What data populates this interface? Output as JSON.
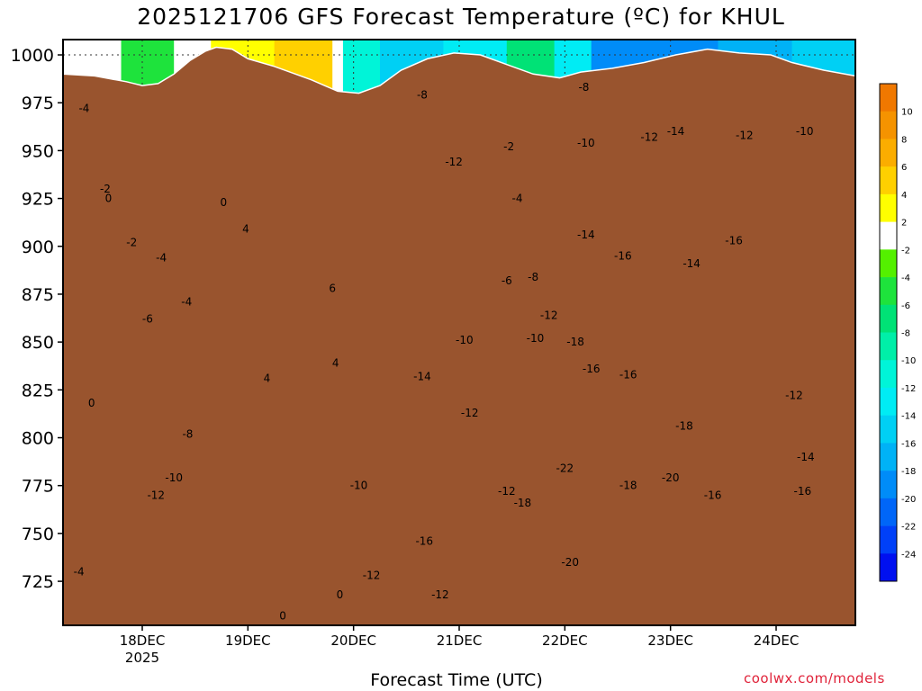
{
  "chart_data": {
    "type": "heatmap",
    "title": "2025121706 GFS Forecast Temperature (ºC) for KHUL",
    "xlabel": "Forecast Time (UTC)",
    "ylabel": "",
    "x_ticks": [
      {
        "label": "18DEC",
        "sublabel": "2025",
        "t": 0.75
      },
      {
        "label": "19DEC",
        "t": 1.75
      },
      {
        "label": "20DEC",
        "t": 2.75
      },
      {
        "label": "21DEC",
        "t": 3.75
      },
      {
        "label": "22DEC",
        "t": 4.75
      },
      {
        "label": "23DEC",
        "t": 5.75
      },
      {
        "label": "24DEC",
        "t": 6.75
      }
    ],
    "xlim": [
      0,
      7.5
    ],
    "y_ticks": [
      725,
      750,
      775,
      800,
      825,
      850,
      875,
      900,
      925,
      950,
      975,
      1000
    ],
    "ylim": [
      1008,
      702
    ],
    "colorbar": {
      "ticks": [
        "10",
        "8",
        "6",
        "4",
        "2",
        "-2",
        "-4",
        "-6",
        "-8",
        "-10",
        "-12",
        "-14",
        "-16",
        "-18",
        "-20",
        "-22",
        "-24"
      ],
      "bands": [
        {
          "from": 12,
          "to": 10,
          "color": "#f07800"
        },
        {
          "from": 10,
          "to": 8,
          "color": "#f59300"
        },
        {
          "from": 8,
          "to": 6,
          "color": "#fbad00"
        },
        {
          "from": 6,
          "to": 4,
          "color": "#ffd000"
        },
        {
          "from": 4,
          "to": 2,
          "color": "#ffff00"
        },
        {
          "from": 2,
          "to": -2,
          "color": "#ffffff"
        },
        {
          "from": -2,
          "to": -4,
          "color": "#54f000"
        },
        {
          "from": -4,
          "to": -6,
          "color": "#1ee33c"
        },
        {
          "from": -6,
          "to": -8,
          "color": "#00e276"
        },
        {
          "from": -8,
          "to": -10,
          "color": "#00efa8"
        },
        {
          "from": -10,
          "to": -12,
          "color": "#00f4d8"
        },
        {
          "from": -12,
          "to": -14,
          "color": "#00ecf4"
        },
        {
          "from": -14,
          "to": -16,
          "color": "#00d0f4"
        },
        {
          "from": -16,
          "to": -18,
          "color": "#00b2f6"
        },
        {
          "from": -18,
          "to": -20,
          "color": "#008cf8"
        },
        {
          "from": -20,
          "to": -22,
          "color": "#0066f8"
        },
        {
          "from": -22,
          "to": -24,
          "color": "#0040f8"
        },
        {
          "from": -24,
          "to": -26,
          "color": "#0010f0"
        }
      ]
    },
    "fields": [
      {
        "t0": 0.0,
        "t1": 0.55,
        "value": "0"
      },
      {
        "t0": 0.55,
        "t1": 1.05,
        "value": "-4"
      },
      {
        "t0": 1.05,
        "t1": 1.4,
        "value": "0"
      },
      {
        "t0": 1.4,
        "t1": 2.0,
        "value": "4"
      },
      {
        "t0": 2.0,
        "t1": 2.55,
        "value": "6"
      },
      {
        "t0": 2.55,
        "t1": 2.65,
        "value": "0"
      },
      {
        "t0": 2.65,
        "t1": 3.0,
        "value": "-10"
      },
      {
        "t0": 3.0,
        "t1": 3.6,
        "value": "-14"
      },
      {
        "t0": 3.6,
        "t1": 4.2,
        "value": "-12"
      },
      {
        "t0": 4.2,
        "t1": 4.65,
        "value": "-6"
      },
      {
        "t0": 4.65,
        "t1": 5.0,
        "value": "-12"
      },
      {
        "t0": 5.0,
        "t1": 5.5,
        "value": "-18"
      },
      {
        "t0": 5.5,
        "t1": 6.2,
        "value": "-18"
      },
      {
        "t0": 6.2,
        "t1": 6.9,
        "value": "-16"
      },
      {
        "t0": 6.9,
        "t1": 7.5,
        "value": "-14"
      }
    ],
    "terrain_pressure": [
      [
        0,
        990
      ],
      [
        0.3,
        989
      ],
      [
        0.6,
        986
      ],
      [
        0.75,
        984
      ],
      [
        0.9,
        985
      ],
      [
        1.05,
        990
      ],
      [
        1.2,
        997
      ],
      [
        1.35,
        1002
      ],
      [
        1.45,
        1004
      ],
      [
        1.6,
        1003
      ],
      [
        1.75,
        998
      ],
      [
        2.0,
        994
      ],
      [
        2.35,
        987
      ],
      [
        2.6,
        981
      ],
      [
        2.8,
        980
      ],
      [
        3.0,
        984
      ],
      [
        3.2,
        992
      ],
      [
        3.45,
        998
      ],
      [
        3.7,
        1001
      ],
      [
        3.95,
        1000
      ],
      [
        4.2,
        995
      ],
      [
        4.45,
        990
      ],
      [
        4.7,
        988
      ],
      [
        4.9,
        991
      ],
      [
        5.2,
        993
      ],
      [
        5.5,
        996
      ],
      [
        5.8,
        1000
      ],
      [
        6.1,
        1003
      ],
      [
        6.4,
        1001
      ],
      [
        6.7,
        1000
      ],
      [
        6.9,
        996
      ],
      [
        7.2,
        992
      ],
      [
        7.5,
        989
      ]
    ],
    "contour_labels": [
      {
        "text": "-4",
        "t": 0.15,
        "p": 730
      },
      {
        "text": "0",
        "t": 2.08,
        "p": 707
      },
      {
        "text": "0",
        "t": 2.62,
        "p": 718
      },
      {
        "text": "-12",
        "t": 2.92,
        "p": 728
      },
      {
        "text": "-12",
        "t": 3.57,
        "p": 718
      },
      {
        "text": "-16",
        "t": 3.42,
        "p": 746
      },
      {
        "text": "-20",
        "t": 4.8,
        "p": 735
      },
      {
        "text": "-12",
        "t": 0.88,
        "p": 770
      },
      {
        "text": "-10",
        "t": 1.05,
        "p": 779
      },
      {
        "text": "-8",
        "t": 1.18,
        "p": 802
      },
      {
        "text": "-10",
        "t": 2.8,
        "p": 775
      },
      {
        "text": "-18",
        "t": 4.35,
        "p": 766
      },
      {
        "text": "-12",
        "t": 4.2,
        "p": 772
      },
      {
        "text": "-22",
        "t": 4.75,
        "p": 784
      },
      {
        "text": "-18",
        "t": 5.35,
        "p": 775
      },
      {
        "text": "-20",
        "t": 5.75,
        "p": 779
      },
      {
        "text": "-16",
        "t": 6.15,
        "p": 770
      },
      {
        "text": "-16",
        "t": 7.0,
        "p": 772
      },
      {
        "text": "-14",
        "t": 7.03,
        "p": 790
      },
      {
        "text": "-18",
        "t": 5.88,
        "p": 806
      },
      {
        "text": "0",
        "t": 0.27,
        "p": 818
      },
      {
        "text": "-12",
        "t": 3.85,
        "p": 813
      },
      {
        "text": "-12",
        "t": 6.92,
        "p": 822
      },
      {
        "text": "4",
        "t": 1.93,
        "p": 831
      },
      {
        "text": "4",
        "t": 2.58,
        "p": 839
      },
      {
        "text": "-14",
        "t": 3.4,
        "p": 832
      },
      {
        "text": "-16",
        "t": 5.0,
        "p": 836
      },
      {
        "text": "-16",
        "t": 5.35,
        "p": 833
      },
      {
        "text": "-6",
        "t": 0.8,
        "p": 862
      },
      {
        "text": "-10",
        "t": 3.8,
        "p": 851
      },
      {
        "text": "-18",
        "t": 4.85,
        "p": 850
      },
      {
        "text": "-10",
        "t": 4.47,
        "p": 852
      },
      {
        "text": "-12",
        "t": 4.6,
        "p": 864
      },
      {
        "text": "-4",
        "t": 1.17,
        "p": 871
      },
      {
        "text": "6",
        "t": 2.55,
        "p": 878
      },
      {
        "text": "-6",
        "t": 4.2,
        "p": 882
      },
      {
        "text": "-8",
        "t": 4.45,
        "p": 884
      },
      {
        "text": "-4",
        "t": 0.93,
        "p": 894
      },
      {
        "text": "-14",
        "t": 5.95,
        "p": 891
      },
      {
        "text": "-16",
        "t": 5.3,
        "p": 895
      },
      {
        "text": "-2",
        "t": 0.65,
        "p": 902
      },
      {
        "text": "4",
        "t": 1.73,
        "p": 909
      },
      {
        "text": "-14",
        "t": 4.95,
        "p": 906
      },
      {
        "text": "-16",
        "t": 6.35,
        "p": 903
      },
      {
        "text": "0",
        "t": 0.43,
        "p": 925
      },
      {
        "text": "-2",
        "t": 0.4,
        "p": 930
      },
      {
        "text": "0",
        "t": 1.52,
        "p": 923
      },
      {
        "text": "-4",
        "t": 4.3,
        "p": 925
      },
      {
        "text": "-12",
        "t": 3.7,
        "p": 944
      },
      {
        "text": "-2",
        "t": 4.22,
        "p": 952
      },
      {
        "text": "-10",
        "t": 4.95,
        "p": 954
      },
      {
        "text": "-12",
        "t": 5.55,
        "p": 957
      },
      {
        "text": "-14",
        "t": 5.8,
        "p": 960
      },
      {
        "text": "-12",
        "t": 6.45,
        "p": 958
      },
      {
        "text": "-10",
        "t": 7.02,
        "p": 960
      },
      {
        "text": "-4",
        "t": 0.2,
        "p": 972
      },
      {
        "text": "-8",
        "t": 3.4,
        "p": 979
      },
      {
        "text": "-8",
        "t": 4.93,
        "p": 983
      }
    ]
  }
}
